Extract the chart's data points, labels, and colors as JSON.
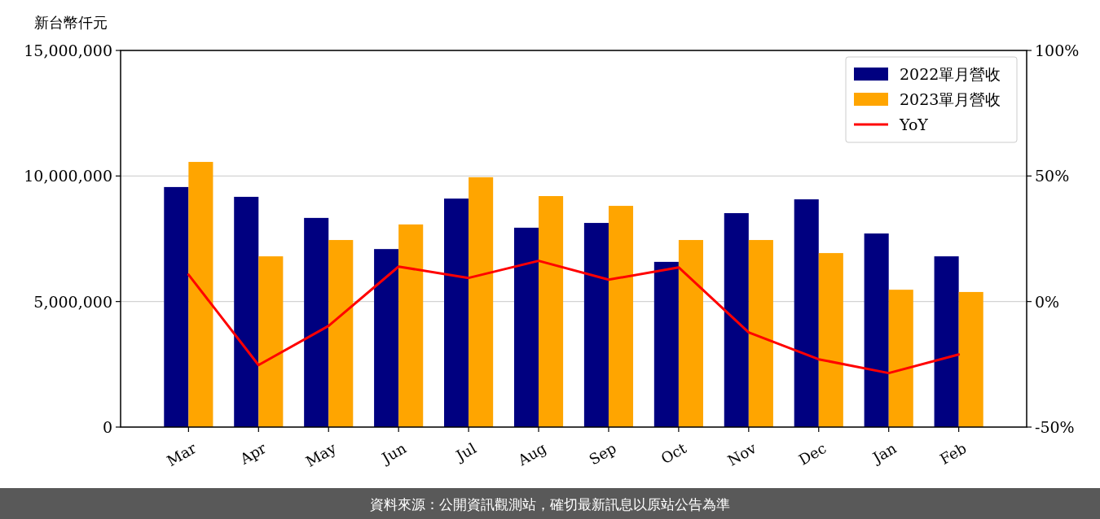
{
  "chart_data": {
    "type": "bar",
    "ylabel": "新台幣仟元",
    "categories": [
      "Mar",
      "Apr",
      "May",
      "Jun",
      "Jul",
      "Aug",
      "Sep",
      "Oct",
      "Nov",
      "Dec",
      "Jan",
      "Feb"
    ],
    "series": [
      {
        "name": "2022單月營收",
        "color": "#000080",
        "values": [
          9560000,
          9170000,
          8330000,
          7090000,
          9100000,
          7940000,
          8130000,
          6580000,
          8520000,
          9070000,
          7710000,
          6800000
        ]
      },
      {
        "name": "2023單月營收",
        "color": "#ffa500",
        "values": [
          10560000,
          6800000,
          7450000,
          8070000,
          9950000,
          9200000,
          8810000,
          7450000,
          7450000,
          6930000,
          5470000,
          5380000
        ]
      },
      {
        "name": "YoY",
        "type": "line",
        "axis": "y2",
        "color": "#ff0000",
        "values": [
          10.7,
          -25.3,
          -9.7,
          13.9,
          9.4,
          16.2,
          8.7,
          13.6,
          -12.3,
          -23.0,
          -28.5,
          -21.1
        ]
      }
    ],
    "ylim": [
      0,
      15000000
    ],
    "yticks": [
      {
        "value": 0,
        "label": "0"
      },
      {
        "value": 5000000,
        "label": "5,000,000"
      },
      {
        "value": 10000000,
        "label": "10,000,000"
      },
      {
        "value": 15000000,
        "label": "15,000,000"
      }
    ],
    "y2lim": [
      -50,
      100
    ],
    "y2ticks": [
      {
        "value": -50,
        "label": "-50%"
      },
      {
        "value": 0,
        "label": "0%"
      },
      {
        "value": 50,
        "label": "50%"
      },
      {
        "value": 100,
        "label": "100%"
      }
    ],
    "grid": "y",
    "legend": "top right",
    "line_style": "solid",
    "annotations": [
      "資料來源：公開資訊觀測站，確切最新訊息以原站公告為準"
    ]
  }
}
